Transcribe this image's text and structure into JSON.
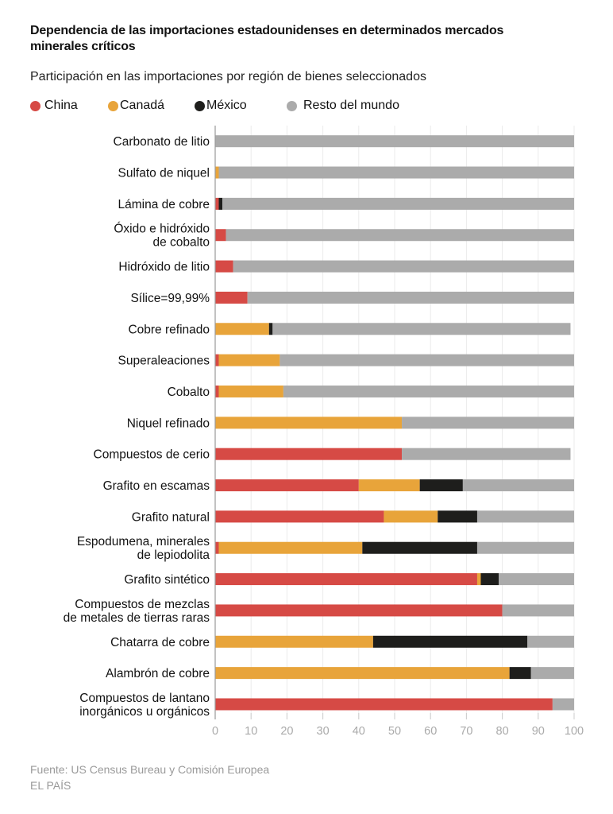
{
  "header": {
    "title": "Dependencia de las importaciones estadounidenses en determinados mercados minerales críticos",
    "subtitle": "Participación en las importaciones por región de bienes seleccionados"
  },
  "legend": [
    {
      "label": "China",
      "color": "#d64a45"
    },
    {
      "label": "Canadá",
      "color": "#e8a43a"
    },
    {
      "label": "México",
      "color": "#1e1e1c"
    },
    {
      "label": "Resto del mundo",
      "color": "#ababab"
    }
  ],
  "footer": {
    "source": "Fuente: US Census Bureau y Comisión Europea",
    "publisher": "EL PAÍS"
  },
  "chart_data": {
    "type": "bar",
    "orientation": "horizontal",
    "stacked": true,
    "title": "Dependencia de las importaciones estadounidenses en determinados mercados minerales críticos",
    "subtitle": "Participación en las importaciones por región de bienes seleccionados",
    "xlabel": "",
    "ylabel": "",
    "xlim": [
      0,
      100
    ],
    "x_ticks": [
      0,
      10,
      20,
      30,
      40,
      50,
      60,
      70,
      80,
      90,
      100
    ],
    "grid": true,
    "legend_position": "top-left",
    "categories": [
      [
        "Carbonato de litio"
      ],
      [
        "Sulfato de niquel"
      ],
      [
        "Lámina de cobre"
      ],
      [
        "Óxido e hidróxido",
        "de cobalto"
      ],
      [
        "Hidróxido de litio"
      ],
      [
        "Sílice=99,99%"
      ],
      [
        "Cobre refinado"
      ],
      [
        "Superaleaciones"
      ],
      [
        "Cobalto"
      ],
      [
        "Niquel refinado"
      ],
      [
        "Compuestos de cerio"
      ],
      [
        "Grafito en escamas"
      ],
      [
        "Grafito natural"
      ],
      [
        "Espodumena, minerales",
        "de lepiodolita"
      ],
      [
        "Grafito sintético"
      ],
      [
        "Compuestos de mezclas",
        "de metales de tierras raras"
      ],
      [
        "Chatarra de cobre"
      ],
      [
        "Alambrón de cobre"
      ],
      [
        "Compuestos de lantano",
        "inorgánicos u orgánicos"
      ]
    ],
    "series": [
      {
        "name": "China",
        "color": "#d64a45",
        "values": [
          0,
          0,
          1,
          3,
          5,
          9,
          0,
          1,
          1,
          0,
          52,
          40,
          47,
          1,
          73,
          80,
          0,
          0,
          94
        ]
      },
      {
        "name": "Canadá",
        "color": "#e8a43a",
        "values": [
          0,
          1,
          0,
          0,
          0,
          0,
          15,
          17,
          18,
          52,
          0,
          17,
          15,
          40,
          1,
          0,
          44,
          82,
          0
        ]
      },
      {
        "name": "México",
        "color": "#1e1e1c",
        "values": [
          0,
          0,
          1,
          0,
          0,
          0,
          1,
          0,
          0,
          0,
          0,
          12,
          11,
          32,
          5,
          0,
          43,
          6,
          0
        ]
      },
      {
        "name": "Resto del mundo",
        "color": "#ababab",
        "values": [
          100,
          99,
          98,
          97,
          95,
          91,
          83,
          82,
          81,
          48,
          47,
          31,
          27,
          27,
          21,
          20,
          13,
          12,
          6
        ]
      }
    ]
  }
}
